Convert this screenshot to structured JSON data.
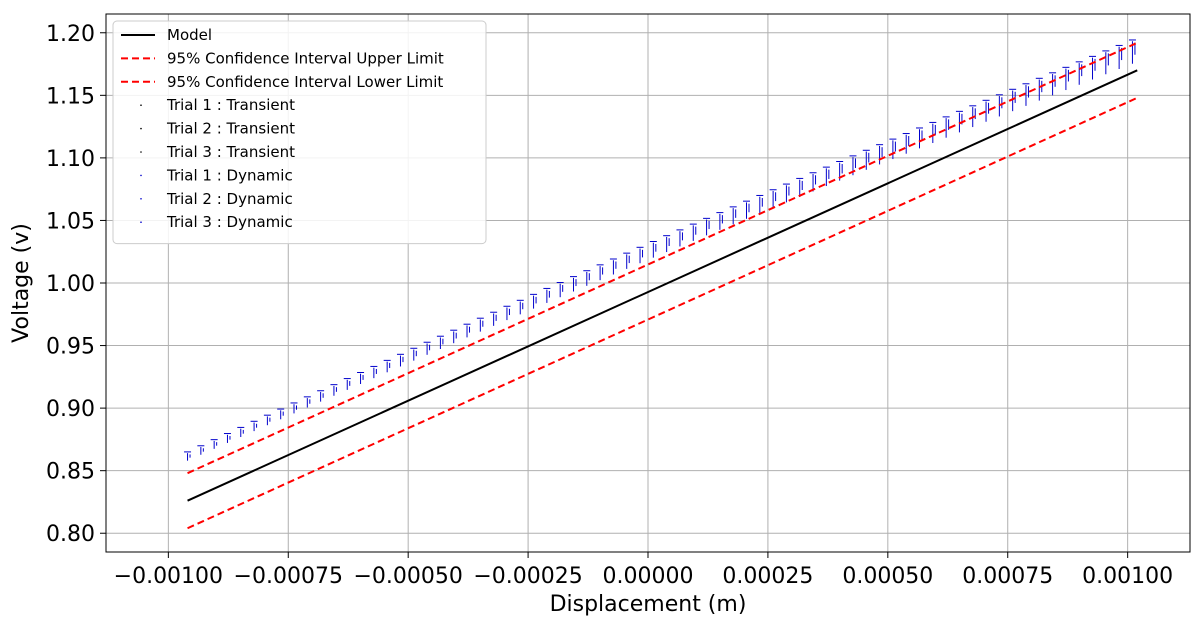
{
  "chart_data": {
    "type": "line",
    "title": "",
    "xlabel": "Displacement (m)",
    "ylabel": "Voltage (v)",
    "xlim": [
      -0.00113,
      0.00113
    ],
    "ylim": [
      0.785,
      1.215
    ],
    "grid": true,
    "legend_position": "top-left",
    "x_ticks": [
      -0.001,
      -0.00075,
      -0.0005,
      -0.00025,
      0.0,
      0.00025,
      0.0005,
      0.00075,
      0.001
    ],
    "x_tick_labels": [
      "−0.00100",
      "−0.00075",
      "−0.00050",
      "−0.00025",
      "0.00000",
      "0.00025",
      "0.00050",
      "0.00075",
      "0.00100"
    ],
    "y_ticks": [
      0.8,
      0.85,
      0.9,
      0.95,
      1.0,
      1.05,
      1.1,
      1.15,
      1.2
    ],
    "y_tick_labels": [
      "0.80",
      "0.85",
      "0.90",
      "0.95",
      "1.00",
      "1.05",
      "1.10",
      "1.15",
      "1.20"
    ],
    "series": [
      {
        "name": "Model",
        "color": "#000000",
        "style": "solid",
        "x": [
          -0.00096,
          0.00102
        ],
        "y": [
          0.826,
          1.17
        ]
      },
      {
        "name": "95% Confidence Interval Upper Limit",
        "color": "#ff0000",
        "style": "dashed",
        "x": [
          -0.00096,
          0.00102
        ],
        "y": [
          0.848,
          1.192
        ]
      },
      {
        "name": "95% Confidence Interval Lower Limit",
        "color": "#ff0000",
        "style": "dashed",
        "x": [
          -0.00096,
          0.00102
        ],
        "y": [
          0.804,
          1.148
        ]
      },
      {
        "name": "Trial 1 : Transient",
        "color": "#000000",
        "style": "point"
      },
      {
        "name": "Trial 2 : Transient",
        "color": "#000000",
        "style": "point"
      },
      {
        "name": "Trial 3 : Transient",
        "color": "#000000",
        "style": "point"
      },
      {
        "name": "Trial 1 : Dynamic",
        "color": "#0000cc",
        "style": "point"
      },
      {
        "name": "Trial 2 : Dynamic",
        "color": "#0000cc",
        "style": "point"
      },
      {
        "name": "Trial 3 : Dynamic",
        "color": "#0000cc",
        "style": "point"
      }
    ],
    "measurement_trend": {
      "description": "step-like measured data clusters",
      "x_range": [
        -0.00096,
        0.00101
      ],
      "y_range": [
        0.864,
        1.193
      ],
      "step_count": 72,
      "color": "#0000cc"
    }
  }
}
